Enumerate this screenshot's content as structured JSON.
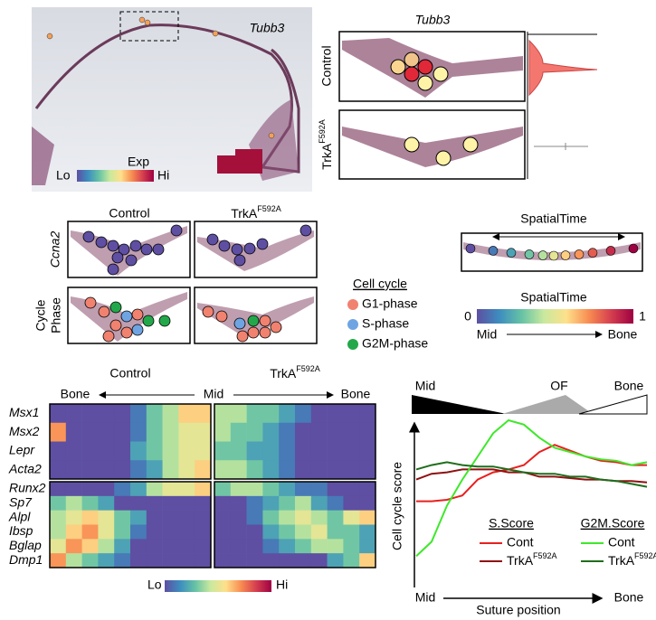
{
  "colormap": [
    "#5e4fa2",
    "#3d8dbf",
    "#66c2a5",
    "#c9e99e",
    "#fee08b",
    "#f88d52",
    "#d53e4f",
    "#9e0142"
  ],
  "panel_a": {
    "gene": "Tubb3",
    "colorbar": {
      "title": "Exp",
      "low": "Lo",
      "high": "Hi"
    }
  },
  "panel_b": {
    "gene": "Tubb3",
    "rows": [
      "Control",
      {
        "text": "TrkA",
        "sup": "F592A"
      }
    ]
  },
  "panel_c": {
    "columns": [
      "Control",
      {
        "text": "TrkA",
        "sup": "F592A"
      }
    ],
    "rows": [
      "Ccna2",
      [
        "Cycle",
        "Phase"
      ]
    ],
    "legend": {
      "title": "Cell cycle",
      "items": [
        {
          "label": "G1-phase",
          "color": "#f0826f"
        },
        {
          "label": "S-phase",
          "color": "#6fa4e3"
        },
        {
          "label": "G2M-phase",
          "color": "#22a84a"
        }
      ]
    }
  },
  "panel_d": {
    "title": "SpatialTime",
    "colorbar": {
      "title": "SpatialTime",
      "ticks": [
        0,
        1
      ],
      "from": "Mid",
      "to": "Bone"
    }
  },
  "chart_data": [
    {
      "type": "heatmap",
      "axis_labels": [
        "Bone",
        "Mid",
        "Bone"
      ],
      "rows": [
        "Msx1",
        "Msx2",
        "Lepr",
        "Acta2",
        "Runx2",
        "Sp7",
        "Alpl",
        "Ibsp",
        "Bglap",
        "Dmp1"
      ],
      "row_blocks": [
        4,
        6
      ],
      "zlim": [
        0,
        1
      ],
      "colorbar": {
        "low": "Lo",
        "high": "Hi"
      },
      "series": [
        {
          "name": "Control",
          "values": [
            [
              0,
              0,
              0,
              0,
              0,
              0.1,
              0.3,
              0.4,
              0.6,
              0.6
            ],
            [
              0.7,
              0,
              0,
              0,
              0,
              0.1,
              0.3,
              0.4,
              0.5,
              0.5
            ],
            [
              0,
              0,
              0,
              0,
              0,
              0.2,
              0.3,
              0.4,
              0.5,
              0.5
            ],
            [
              0,
              0,
              0,
              0,
              0,
              0.1,
              0.2,
              0.4,
              0.5,
              0.6
            ],
            [
              0,
              0,
              0,
              0,
              0.1,
              0.2,
              0.4,
              0.5,
              0.5,
              0.6
            ],
            [
              0.3,
              0.4,
              0.3,
              0.2,
              0,
              0,
              0,
              0,
              0,
              0
            ],
            [
              0.4,
              0.5,
              0.6,
              0.5,
              0.3,
              0.2,
              0,
              0,
              0,
              0
            ],
            [
              0.4,
              0.6,
              0.7,
              0.5,
              0.3,
              0.1,
              0,
              0,
              0,
              0
            ],
            [
              0.5,
              0.7,
              0.6,
              0.4,
              0.2,
              0,
              0,
              0,
              0,
              0
            ],
            [
              0.7,
              0.4,
              0.3,
              0.2,
              0.1,
              0,
              0,
              0,
              0,
              0
            ]
          ]
        },
        {
          "name": {
            "text": "TrkA",
            "sup": "F592A"
          },
          "values": [
            [
              0.4,
              0.4,
              0.3,
              0.3,
              0.2,
              0.1,
              0,
              0,
              0,
              0
            ],
            [
              0.4,
              0.3,
              0.3,
              0.2,
              0.1,
              0,
              0,
              0,
              0,
              0
            ],
            [
              0.3,
              0.3,
              0.2,
              0.2,
              0.1,
              0,
              0,
              0,
              0,
              0
            ],
            [
              0.4,
              0.4,
              0.3,
              0.2,
              0.1,
              0,
              0,
              0,
              0,
              0
            ],
            [
              0.3,
              0.4,
              0.4,
              0.3,
              0.2,
              0.1,
              0.1,
              0,
              0,
              0
            ],
            [
              0,
              0,
              0.1,
              0.2,
              0.3,
              0.4,
              0.2,
              0.1,
              0,
              0
            ],
            [
              0,
              0,
              0.1,
              0.3,
              0.4,
              0.5,
              0.4,
              0.3,
              0.5,
              0.6
            ],
            [
              0,
              0,
              0,
              0.2,
              0.3,
              0.4,
              0.5,
              0.3,
              0.3,
              0.2
            ],
            [
              0,
              0,
              0,
              0.1,
              0.2,
              0.3,
              0.4,
              0.4,
              0.3,
              0.2
            ],
            [
              0,
              0,
              0,
              0,
              0,
              0,
              0,
              0.2,
              0.3,
              0.6
            ]
          ]
        }
      ]
    },
    {
      "type": "line",
      "zones": [
        "Mid",
        "OF",
        "Bone"
      ],
      "ylabel": "Cell cycle score",
      "xlabel": "Suture position",
      "x_start": "Mid",
      "x_end": "Bone",
      "ylim": [
        0,
        1
      ],
      "legend_groups": [
        "S.Score",
        "G2M.Score"
      ],
      "series": [
        {
          "name": "Cont",
          "legend_group": 0,
          "color": "#e8201e",
          "values": [
            0.44,
            0.44,
            0.45,
            0.48,
            0.59,
            0.64,
            0.66,
            0.69,
            0.78,
            0.83,
            0.79,
            0.75,
            0.72,
            0.71,
            0.69,
            0.69
          ]
        },
        {
          "name": {
            "text": "TrkA",
            "sup": "F592A"
          },
          "legend_group": 0,
          "color": "#8e1212",
          "values": [
            0.59,
            0.63,
            0.64,
            0.66,
            0.66,
            0.66,
            0.64,
            0.64,
            0.61,
            0.61,
            0.6,
            0.59,
            0.59,
            0.58,
            0.58,
            0.57
          ]
        },
        {
          "name": "Cont",
          "legend_group": 1,
          "color": "#3ee82a",
          "values": [
            0.06,
            0.16,
            0.41,
            0.59,
            0.75,
            0.91,
            1.0,
            0.97,
            0.88,
            0.81,
            0.78,
            0.75,
            0.73,
            0.72,
            0.69,
            0.71
          ]
        },
        {
          "name": {
            "text": "TrkA",
            "sup": "F592A"
          },
          "legend_group": 1,
          "color": "#1f6e1c",
          "values": [
            0.66,
            0.69,
            0.71,
            0.69,
            0.68,
            0.68,
            0.66,
            0.64,
            0.63,
            0.63,
            0.61,
            0.61,
            0.59,
            0.58,
            0.56,
            0.54
          ]
        }
      ]
    }
  ]
}
